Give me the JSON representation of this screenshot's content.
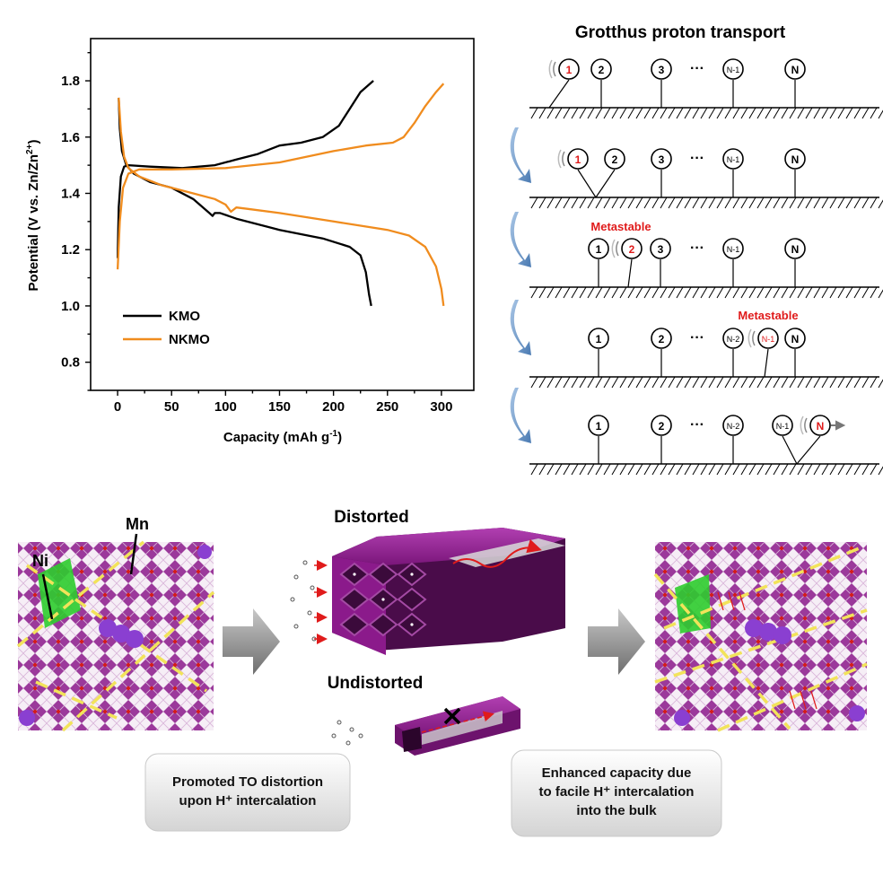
{
  "chart_data": {
    "type": "line",
    "xlabel": "Capacity (mAh g",
    "xlabel_sup": "-1",
    "xlabel_end": ")",
    "ylabel": "Potential (V vs. Zn/Zn",
    "ylabel_sup": "2+",
    "ylabel_end": ")",
    "xlim": [
      -25,
      330
    ],
    "ylim": [
      0.7,
      1.95
    ],
    "xticks": [
      0,
      50,
      100,
      150,
      200,
      250,
      300
    ],
    "yticks": [
      0.8,
      1.0,
      1.2,
      1.4,
      1.6,
      1.8
    ],
    "legend_position": "bottom-left",
    "series": [
      {
        "name": "KMO",
        "color": "#000000",
        "discharge": [
          [
            1,
            1.74
          ],
          [
            2,
            1.63
          ],
          [
            4,
            1.55
          ],
          [
            8,
            1.5
          ],
          [
            15,
            1.47
          ],
          [
            30,
            1.44
          ],
          [
            50,
            1.42
          ],
          [
            70,
            1.38
          ],
          [
            85,
            1.33
          ],
          [
            88,
            1.32
          ],
          [
            90,
            1.33
          ],
          [
            95,
            1.33
          ],
          [
            110,
            1.31
          ],
          [
            150,
            1.27
          ],
          [
            190,
            1.24
          ],
          [
            215,
            1.21
          ],
          [
            225,
            1.18
          ],
          [
            230,
            1.12
          ],
          [
            233,
            1.04
          ],
          [
            235,
            1.0
          ]
        ],
        "charge": [
          [
            0,
            1.17
          ],
          [
            1,
            1.35
          ],
          [
            3,
            1.46
          ],
          [
            6,
            1.495
          ],
          [
            10,
            1.5
          ],
          [
            30,
            1.495
          ],
          [
            60,
            1.49
          ],
          [
            90,
            1.5
          ],
          [
            110,
            1.52
          ],
          [
            130,
            1.54
          ],
          [
            150,
            1.57
          ],
          [
            170,
            1.58
          ],
          [
            190,
            1.6
          ],
          [
            205,
            1.64
          ],
          [
            215,
            1.7
          ],
          [
            225,
            1.76
          ],
          [
            237,
            1.8
          ]
        ]
      },
      {
        "name": "NKMO",
        "color": "#f08c1e",
        "discharge": [
          [
            1,
            1.74
          ],
          [
            3,
            1.62
          ],
          [
            6,
            1.53
          ],
          [
            10,
            1.49
          ],
          [
            20,
            1.46
          ],
          [
            40,
            1.43
          ],
          [
            70,
            1.4
          ],
          [
            90,
            1.38
          ],
          [
            100,
            1.36
          ],
          [
            105,
            1.335
          ],
          [
            110,
            1.35
          ],
          [
            120,
            1.345
          ],
          [
            150,
            1.33
          ],
          [
            200,
            1.3
          ],
          [
            250,
            1.27
          ],
          [
            270,
            1.25
          ],
          [
            285,
            1.21
          ],
          [
            295,
            1.14
          ],
          [
            300,
            1.06
          ],
          [
            302,
            1.0
          ]
        ],
        "charge": [
          [
            0,
            1.13
          ],
          [
            2,
            1.3
          ],
          [
            5,
            1.42
          ],
          [
            10,
            1.47
          ],
          [
            20,
            1.485
          ],
          [
            50,
            1.485
          ],
          [
            100,
            1.49
          ],
          [
            150,
            1.51
          ],
          [
            200,
            1.55
          ],
          [
            230,
            1.57
          ],
          [
            255,
            1.58
          ],
          [
            265,
            1.6
          ],
          [
            275,
            1.65
          ],
          [
            285,
            1.71
          ],
          [
            295,
            1.76
          ],
          [
            302,
            1.79
          ]
        ]
      }
    ]
  },
  "grotthuss": {
    "title": "Grotthus proton transport",
    "metastable_label": "Metastable",
    "dots": "···",
    "rows": [
      {
        "labels": [
          "1",
          "2",
          "3",
          "N-1",
          "N"
        ],
        "red": [
          0
        ]
      },
      {
        "labels": [
          "1",
          "2",
          "3",
          "N-1",
          "N"
        ],
        "red": [
          0
        ]
      },
      {
        "labels": [
          "1",
          "2",
          "3",
          "N-1",
          "N"
        ],
        "red": [
          1
        ]
      },
      {
        "labels": [
          "1",
          "2",
          "N-2",
          "N-1",
          "N"
        ],
        "red": [
          3
        ]
      },
      {
        "labels": [
          "1",
          "2",
          "N-2",
          "N-1",
          "N"
        ],
        "red": [
          4
        ]
      }
    ]
  },
  "bottom": {
    "label_ni": "Ni",
    "label_mn": "Mn",
    "label_distorted": "Distorted",
    "label_undistorted": "Undistorted",
    "caption_left_line1": "Promoted TO distortion",
    "caption_left_line2": "upon H⁺ intercalation",
    "caption_right_line1": "Enhanced capacity due",
    "caption_right_line2": "to facile H⁺ intercalation",
    "caption_right_line3": "into the bulk",
    "colors": {
      "purple": "#8b1a8b",
      "green": "#2ecc2e",
      "yellow": "#f2e35a"
    }
  }
}
